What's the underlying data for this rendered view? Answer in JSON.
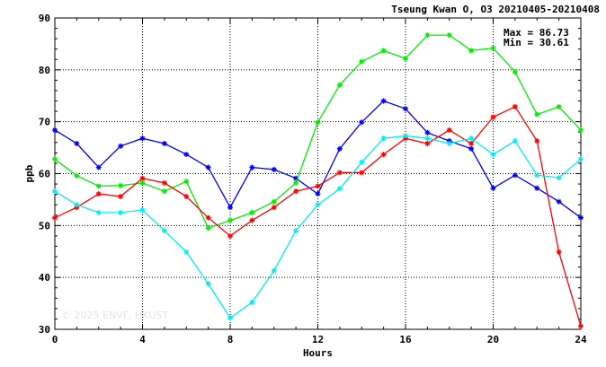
{
  "chart_data": {
    "type": "line",
    "title": "Tseung Kwan O, O3 20210405-20210408",
    "xlabel": "Hours",
    "ylabel": "ppb",
    "xlim": [
      0,
      24
    ],
    "ylim": [
      30,
      90
    ],
    "xticks": [
      "0",
      "4",
      "8",
      "12",
      "16",
      "20",
      "24"
    ],
    "yticks": [
      "30",
      "40",
      "50",
      "60",
      "70",
      "80",
      "90"
    ],
    "grid": true,
    "stats": {
      "max": "Max = 86.73",
      "min": "Min = 30.61"
    },
    "watermark": "© 2025 ENVF, HKUST",
    "x": [
      0,
      1,
      2,
      3,
      4,
      5,
      6,
      7,
      8,
      9,
      10,
      11,
      12,
      13,
      14,
      15,
      16,
      17,
      18,
      19,
      20,
      21,
      22,
      23,
      24
    ],
    "series": [
      {
        "color": "#0000ff",
        "values": [
          68.4,
          65.8,
          61.2,
          65.3,
          66.8,
          65.8,
          63.7,
          61.2,
          53.5,
          61.2,
          60.8,
          59.1,
          56.1,
          64.8,
          69.9,
          74.0,
          72.5,
          67.9,
          66.3,
          64.8,
          57.2,
          59.7,
          57.2,
          54.6,
          51.5
        ]
      },
      {
        "color": "#00ee00",
        "values": [
          62.8,
          59.6,
          57.6,
          57.7,
          58.2,
          56.6,
          58.5,
          49.5,
          51.0,
          52.5,
          54.6,
          58.2,
          69.9,
          77.1,
          81.6,
          83.7,
          82.2,
          86.7,
          86.7,
          83.7,
          84.2,
          79.6,
          71.4,
          72.9,
          68.4
        ]
      },
      {
        "color": "#ff0000",
        "values": [
          51.5,
          53.5,
          56.1,
          55.6,
          59.1,
          58.2,
          55.6,
          51.5,
          48.0,
          51.0,
          53.5,
          56.6,
          57.6,
          60.2,
          60.2,
          63.7,
          66.8,
          65.8,
          68.4,
          65.8,
          70.9,
          72.9,
          66.3,
          44.9,
          30.6
        ]
      },
      {
        "color": "#00eeee",
        "values": [
          56.6,
          54.0,
          52.5,
          52.5,
          53.0,
          49.0,
          44.9,
          38.8,
          32.2,
          35.2,
          41.3,
          49.0,
          54.0,
          57.1,
          62.2,
          66.8,
          67.3,
          66.8,
          65.8,
          66.8,
          63.7,
          66.3,
          59.7,
          59.2,
          62.8
        ]
      }
    ]
  }
}
